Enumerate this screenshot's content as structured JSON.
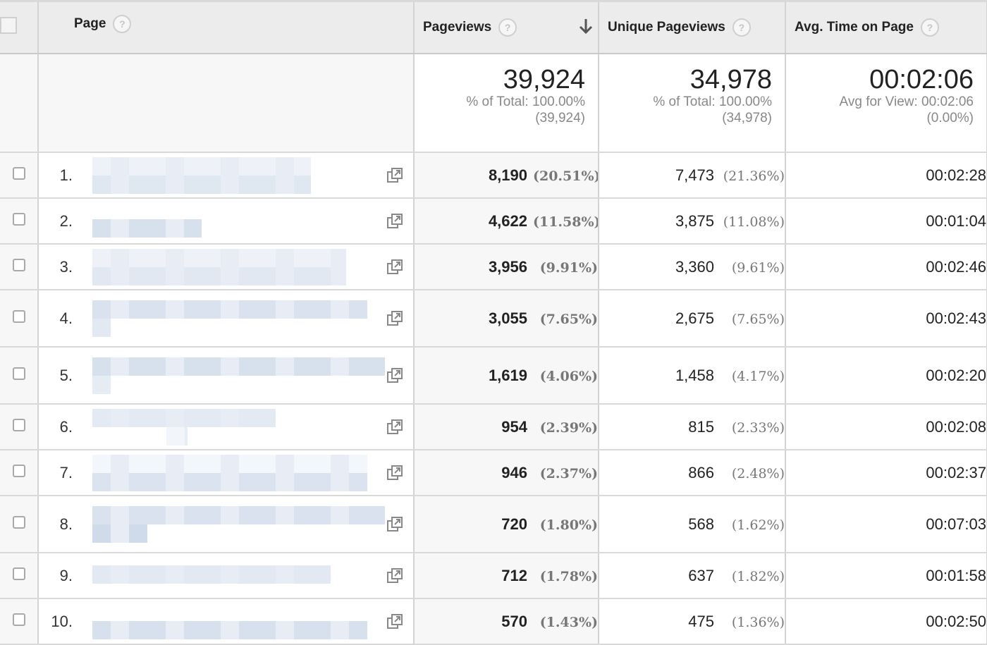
{
  "header": {
    "page_label": "Page",
    "pageviews_label": "Pageviews",
    "unique_label": "Unique Pageviews",
    "avg_time_label": "Avg. Time on Page",
    "help_glyph": "?",
    "sort_icon": "arrow-down-icon"
  },
  "totals": {
    "pageviews": "39,924",
    "pageviews_pct_line": "% of Total: 100.00%",
    "pageviews_abs": "(39,924)",
    "unique": "34,978",
    "unique_pct_line": "% of Total: 100.00%",
    "unique_abs": "(34,978)",
    "avg_time": "00:02:06",
    "avg_time_line": "Avg for View: 00:02:06",
    "avg_time_pct": "(0.00%)"
  },
  "rows": [
    {
      "index": "1.",
      "pageviews": "8,190",
      "pageviews_pct": "(20.51%)",
      "unique": "7,473",
      "unique_pct": "(21.36%)",
      "avg_time": "00:02:28"
    },
    {
      "index": "2.",
      "pageviews": "4,622",
      "pageviews_pct": "(11.58%)",
      "unique": "3,875",
      "unique_pct": "(11.08%)",
      "avg_time": "00:01:04"
    },
    {
      "index": "3.",
      "pageviews": "3,956",
      "pageviews_pct": "(9.91%)",
      "unique": "3,360",
      "unique_pct": "(9.61%)",
      "avg_time": "00:02:46"
    },
    {
      "index": "4.",
      "pageviews": "3,055",
      "pageviews_pct": "(7.65%)",
      "unique": "2,675",
      "unique_pct": "(7.65%)",
      "avg_time": "00:02:43"
    },
    {
      "index": "5.",
      "pageviews": "1,619",
      "pageviews_pct": "(4.06%)",
      "unique": "1,458",
      "unique_pct": "(4.17%)",
      "avg_time": "00:02:20"
    },
    {
      "index": "6.",
      "pageviews": "954",
      "pageviews_pct": "(2.39%)",
      "unique": "815",
      "unique_pct": "(2.33%)",
      "avg_time": "00:02:08"
    },
    {
      "index": "7.",
      "pageviews": "946",
      "pageviews_pct": "(2.37%)",
      "unique": "866",
      "unique_pct": "(2.48%)",
      "avg_time": "00:02:37"
    },
    {
      "index": "8.",
      "pageviews": "720",
      "pageviews_pct": "(1.80%)",
      "unique": "568",
      "unique_pct": "(1.62%)",
      "avg_time": "00:07:03"
    },
    {
      "index": "9.",
      "pageviews": "712",
      "pageviews_pct": "(1.78%)",
      "unique": "637",
      "unique_pct": "(1.82%)",
      "avg_time": "00:01:58"
    },
    {
      "index": "10.",
      "pageviews": "570",
      "pageviews_pct": "(1.43%)",
      "unique": "475",
      "unique_pct": "(1.36%)",
      "avg_time": "00:02:50"
    }
  ]
}
